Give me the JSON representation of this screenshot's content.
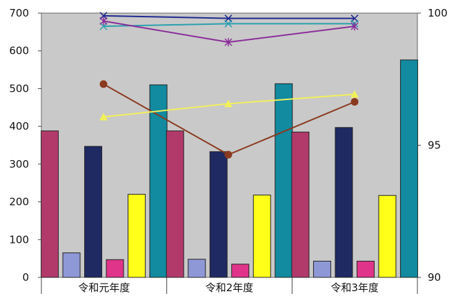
{
  "chart_data": {
    "type": "bar",
    "categories": [
      "令和元年度",
      "令和2年度",
      "令和3年度"
    ],
    "bar_series": [
      {
        "color": "#b23a6b",
        "values": [
          388,
          388,
          385
        ]
      },
      {
        "color": "#8f98d6",
        "values": [
          65,
          48,
          43
        ]
      },
      {
        "color": "#1f2a63",
        "values": [
          347,
          333,
          397
        ]
      },
      {
        "color": "#e0348a",
        "values": [
          47,
          35,
          43
        ]
      },
      {
        "color": "#ffff1a",
        "values": [
          220,
          218,
          217
        ]
      },
      {
        "color": "#128aa0",
        "values": [
          510,
          513,
          576
        ]
      }
    ],
    "line_series": [
      {
        "color": "#8a3a1e",
        "marker": "circle",
        "axis": "left",
        "values": [
          512,
          325,
          465
        ]
      },
      {
        "color": "#f2f05a",
        "marker": "triangle",
        "axis": "left",
        "values": [
          425,
          460,
          485
        ]
      },
      {
        "color": "#1f2a8f",
        "marker": "x",
        "axis": "right",
        "values": [
          99.9,
          99.8,
          99.8
        ]
      },
      {
        "color": "#2aa0b0",
        "marker": "x",
        "axis": "right",
        "values": [
          99.5,
          99.6,
          99.6
        ]
      },
      {
        "color": "#8a2d9a",
        "marker": "star",
        "axis": "right",
        "values": [
          99.7,
          98.9,
          99.5
        ]
      }
    ],
    "y_left": {
      "min": 0,
      "max": 700,
      "ticks": [
        "0",
        "100",
        "200",
        "300",
        "400",
        "500",
        "600",
        "700"
      ]
    },
    "y_right": {
      "min": 90,
      "max": 100,
      "ticks": [
        "90",
        "95",
        "100"
      ]
    },
    "grid": false,
    "background": "#c9c9c9"
  }
}
